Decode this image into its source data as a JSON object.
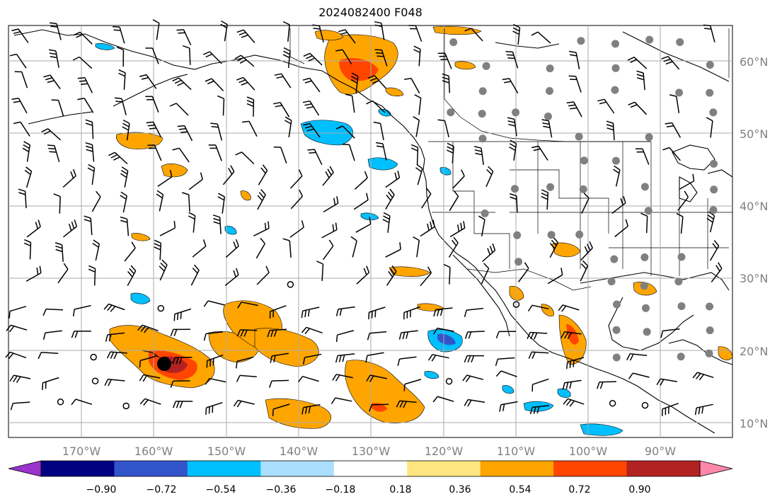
{
  "title": "2024082400 F048",
  "lon_labels": [
    "170°W",
    "160°W",
    "150°W",
    "140°W",
    "130°W",
    "120°W",
    "110°W",
    "100°W",
    "90°W"
  ],
  "lat_labels": [
    "60°N",
    "50°N",
    "40°N",
    "30°N",
    "20°N",
    "10°N"
  ],
  "colorbar": {
    "ticks": [
      "−0.90",
      "−0.72",
      "−0.54",
      "−0.36",
      "−0.18",
      "0.18",
      "0.36",
      "0.54",
      "0.72",
      "0.90"
    ],
    "colors": [
      "#9933cc",
      "#000080",
      "#3355cc",
      "#00bfff",
      "#aadfff",
      "#ffffff",
      "#ffe680",
      "#ffa500",
      "#ff4500",
      "#b22222",
      "#ff88aa"
    ]
  },
  "colors": {
    "grid": "#aaaaaa",
    "coast": "#000000",
    "station": "#808080"
  }
}
